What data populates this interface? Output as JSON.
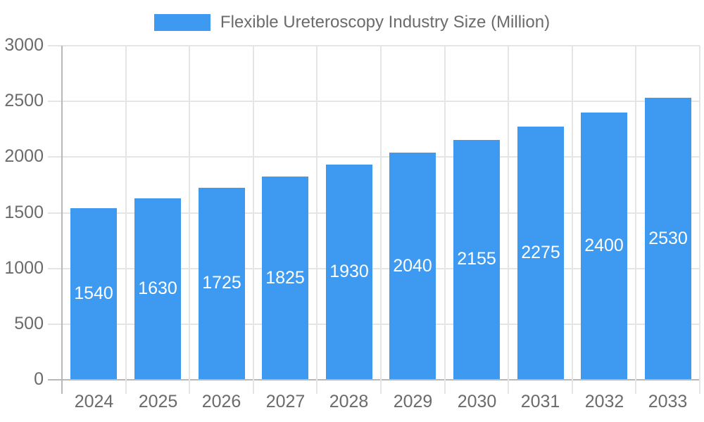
{
  "legend": {
    "label": "Flexible Ureteroscopy Industry Size (Million)"
  },
  "chart_data": {
    "type": "bar",
    "title": "Flexible Ureteroscopy Industry Size (Million)",
    "categories": [
      "2024",
      "2025",
      "2026",
      "2027",
      "2028",
      "2029",
      "2030",
      "2031",
      "2032",
      "2033"
    ],
    "values": [
      1540,
      1630,
      1725,
      1825,
      1930,
      2040,
      2155,
      2275,
      2400,
      2530
    ],
    "series": [
      {
        "name": "Flexible Ureteroscopy Industry Size (Million)",
        "values": [
          1540,
          1630,
          1725,
          1825,
          1930,
          2040,
          2155,
          2275,
          2400,
          2530
        ]
      }
    ],
    "xlabel": "",
    "ylabel": "",
    "ylim": [
      0,
      3000
    ],
    "yticks": [
      0,
      500,
      1000,
      1500,
      2000,
      2500,
      3000
    ],
    "grid": true,
    "value_labels": "centered-inside-bars",
    "legend_position": "top-center",
    "colors": {
      "bar": "#3d9af0",
      "axis_text": "#6b6b6b",
      "value_text": "#ffffff",
      "gridline": "#e5e5e5",
      "zero_line": "#b8b8b8"
    }
  }
}
